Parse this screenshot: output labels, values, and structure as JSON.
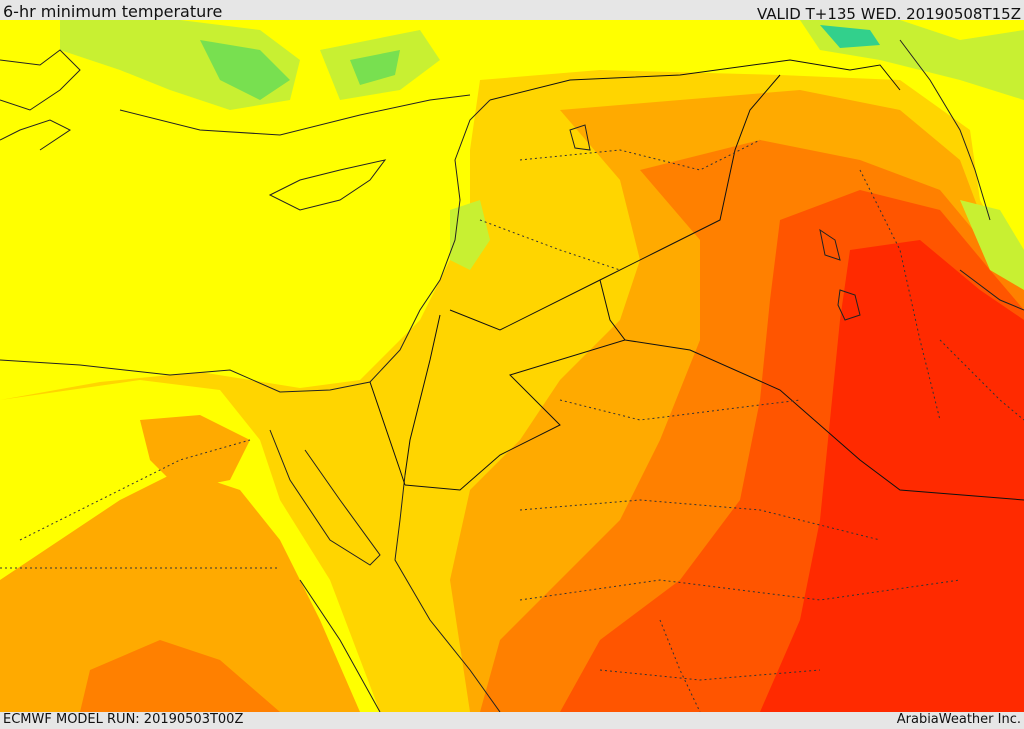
{
  "header": {
    "title": "6-hr minimum temperature",
    "valid_time": "VALID T+135 WED. 20190508T15Z"
  },
  "footer": {
    "model_run": "ECMWF MODEL RUN: 20190503T00Z",
    "credit": "ArabiaWeather Inc."
  },
  "map": {
    "variable": "6-hr minimum temperature",
    "colors": {
      "sea_yellow": "#ffff00",
      "light_orange": "#ffd500",
      "orange": "#ffaa00",
      "dark_orange": "#ff8000",
      "red_orange": "#ff5500",
      "red": "#ff2a00",
      "green_yellow": "#c8f032",
      "green": "#78e050",
      "teal": "#32d08c"
    }
  }
}
